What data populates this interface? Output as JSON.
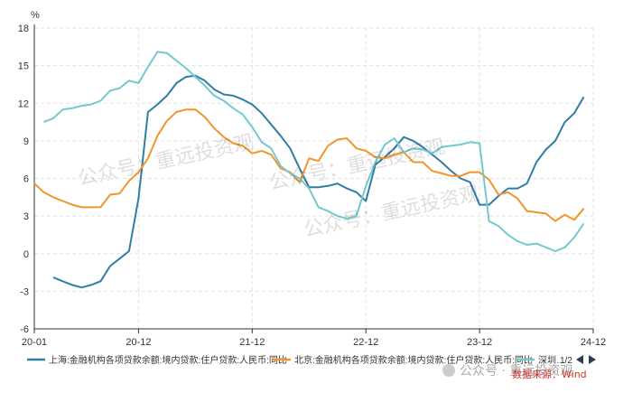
{
  "chart_data": {
    "type": "line",
    "unit": "%",
    "xlim": [
      0,
      59
    ],
    "ylim": [
      -6,
      18
    ],
    "yticks": [
      -6,
      -3,
      0,
      3,
      6,
      9,
      12,
      15,
      18
    ],
    "xticks": [
      {
        "x": 0,
        "label": "20-01"
      },
      {
        "x": 11,
        "label": "20-12"
      },
      {
        "x": 23,
        "label": "21-12"
      },
      {
        "x": 35,
        "label": "22-12"
      },
      {
        "x": 47,
        "label": "23-12"
      },
      {
        "x": 59,
        "label": "24-12"
      }
    ],
    "grid": true,
    "legend_position": "bottom",
    "series": [
      {
        "name": "上海:金融机构各项贷款余额:境内贷款:住户贷款:人民币:同比",
        "color": "#2e7ea6",
        "points": [
          [
            2,
            -1.9
          ],
          [
            3,
            -2.2
          ],
          [
            4,
            -2.5
          ],
          [
            5,
            -2.7
          ],
          [
            6,
            -2.5
          ],
          [
            7,
            -2.2
          ],
          [
            8,
            -1
          ],
          [
            9,
            -0.4
          ],
          [
            10,
            0.2
          ],
          [
            11,
            4.4
          ],
          [
            12,
            11.3
          ],
          [
            13,
            11.9
          ],
          [
            14,
            12.6
          ],
          [
            15,
            13.6
          ],
          [
            16,
            14.1
          ],
          [
            17,
            14.2
          ],
          [
            18,
            13.8
          ],
          [
            19,
            13.1
          ],
          [
            20,
            12.7
          ],
          [
            21,
            12.6
          ],
          [
            22,
            12.3
          ],
          [
            23,
            11.9
          ],
          [
            24,
            11.2
          ],
          [
            25,
            10.3
          ],
          [
            26,
            9.4
          ],
          [
            27,
            8.4
          ],
          [
            28,
            6.8
          ],
          [
            29,
            5.3
          ],
          [
            30,
            5.3
          ],
          [
            31,
            5.4
          ],
          [
            32,
            5.6
          ],
          [
            33,
            5.2
          ],
          [
            34,
            4.9
          ],
          [
            35,
            4.2
          ],
          [
            36,
            7.1
          ],
          [
            37,
            7.7
          ],
          [
            38,
            8.4
          ],
          [
            39,
            9.3
          ],
          [
            40,
            9.0
          ],
          [
            41,
            8.5
          ],
          [
            42,
            7.9
          ],
          [
            43,
            7.3
          ],
          [
            44,
            6.6
          ],
          [
            45,
            6.0
          ],
          [
            46,
            5.7
          ],
          [
            47,
            3.9
          ],
          [
            48,
            3.9
          ],
          [
            49,
            4.6
          ],
          [
            50,
            5.2
          ],
          [
            51,
            5.2
          ],
          [
            52,
            5.6
          ],
          [
            53,
            7.3
          ],
          [
            54,
            8.3
          ],
          [
            55,
            9.0
          ],
          [
            56,
            10.5
          ],
          [
            57,
            11.2
          ],
          [
            58,
            12.5
          ]
        ]
      },
      {
        "name": "北京:金融机构各项贷款余额:境内贷款:住户贷款:人民币:同比",
        "color": "#f0962b",
        "points": [
          [
            0,
            5.6
          ],
          [
            1,
            4.9
          ],
          [
            2,
            4.5
          ],
          [
            3,
            4.2
          ],
          [
            4,
            3.9
          ],
          [
            5,
            3.7
          ],
          [
            6,
            3.7
          ],
          [
            7,
            3.7
          ],
          [
            8,
            4.7
          ],
          [
            9,
            4.8
          ],
          [
            10,
            5.8
          ],
          [
            11,
            6.5
          ],
          [
            12,
            7.6
          ],
          [
            13,
            9.4
          ],
          [
            14,
            10.6
          ],
          [
            15,
            11.3
          ],
          [
            16,
            11.5
          ],
          [
            17,
            11.5
          ],
          [
            18,
            10.9
          ],
          [
            19,
            10
          ],
          [
            20,
            9.3
          ],
          [
            21,
            8.8
          ],
          [
            22,
            8.6
          ],
          [
            23,
            8
          ],
          [
            24,
            8.2
          ],
          [
            25,
            7.9
          ],
          [
            26,
            6.8
          ],
          [
            27,
            6.5
          ],
          [
            28,
            5.7
          ],
          [
            29,
            7.6
          ],
          [
            30,
            7.4
          ],
          [
            31,
            8.6
          ],
          [
            32,
            9.1
          ],
          [
            33,
            9.2
          ],
          [
            34,
            8.4
          ],
          [
            35,
            8.2
          ],
          [
            36,
            7.7
          ],
          [
            37,
            7.6
          ],
          [
            38,
            7.9
          ],
          [
            39,
            8.1
          ],
          [
            40,
            7.3
          ],
          [
            41,
            7.3
          ],
          [
            42,
            6.6
          ],
          [
            43,
            6.4
          ],
          [
            44,
            6.2
          ],
          [
            45,
            6.2
          ],
          [
            46,
            6.5
          ],
          [
            47,
            6.5
          ],
          [
            48,
            5.9
          ],
          [
            49,
            4.7
          ],
          [
            50,
            4.9
          ],
          [
            51,
            4.4
          ],
          [
            52,
            3.4
          ],
          [
            53,
            3.3
          ],
          [
            54,
            3.2
          ],
          [
            55,
            2.6
          ],
          [
            56,
            3.1
          ],
          [
            57,
            2.7
          ],
          [
            58,
            3.6
          ]
        ]
      },
      {
        "name": "深圳:金融机构各项贷款余额:境内贷款:住户贷款:人民币:同比",
        "color": "#73c9cd",
        "points": [
          [
            1,
            10.5
          ],
          [
            2,
            10.8
          ],
          [
            3,
            11.5
          ],
          [
            4,
            11.6
          ],
          [
            5,
            11.8
          ],
          [
            6,
            11.9
          ],
          [
            7,
            12.2
          ],
          [
            8,
            13
          ],
          [
            9,
            13.2
          ],
          [
            10,
            13.8
          ],
          [
            11,
            13.6
          ],
          [
            12,
            14.9
          ],
          [
            13,
            16.1
          ],
          [
            14,
            16.0
          ],
          [
            15,
            15.4
          ],
          [
            16,
            14.8
          ],
          [
            17,
            14.1
          ],
          [
            18,
            13.4
          ],
          [
            19,
            12.6
          ],
          [
            20,
            12.2
          ],
          [
            21,
            11.6
          ],
          [
            22,
            11.1
          ],
          [
            23,
            10.1
          ],
          [
            24,
            8.9
          ],
          [
            25,
            8.4
          ],
          [
            26,
            7
          ],
          [
            27,
            6.4
          ],
          [
            28,
            6
          ],
          [
            29,
            5.2
          ],
          [
            30,
            3.7
          ],
          [
            31,
            3.4
          ],
          [
            32,
            3
          ],
          [
            33,
            2.8
          ],
          [
            34,
            3
          ],
          [
            35,
            5.4
          ],
          [
            36,
            7.3
          ],
          [
            37,
            8.7
          ],
          [
            38,
            9.2
          ],
          [
            39,
            8.1
          ],
          [
            40,
            8.4
          ],
          [
            41,
            8.3
          ],
          [
            42,
            8.0
          ],
          [
            43,
            8.5
          ],
          [
            44,
            8.6
          ],
          [
            45,
            8.7
          ],
          [
            46,
            8.9
          ],
          [
            47,
            8.8
          ],
          [
            48,
            2.6
          ],
          [
            49,
            2.2
          ],
          [
            50,
            1.5
          ],
          [
            51,
            1.0
          ],
          [
            52,
            0.7
          ],
          [
            53,
            0.8
          ],
          [
            54,
            0.5
          ],
          [
            55,
            0.2
          ],
          [
            56,
            0.5
          ],
          [
            57,
            1.3
          ],
          [
            58,
            2.4
          ]
        ]
      }
    ],
    "legend_entries": [
      {
        "label": "上海:金融机构各项贷款余额:境内贷款:住户贷款:人民币:同比"
      },
      {
        "label": "北京:金融机构各项贷款余额:境内贷款:住户贷款:人民币:同比"
      },
      {
        "label": "深圳…"
      }
    ],
    "legend_page": "1/2"
  },
  "watermarks": {
    "texts": [
      "公众号：重远投资观",
      "公众号：重远投资观",
      "公众号：重远投资观"
    ],
    "footer_brand": "公众号 · 重远投资观",
    "source": "数据来源：Wind"
  }
}
